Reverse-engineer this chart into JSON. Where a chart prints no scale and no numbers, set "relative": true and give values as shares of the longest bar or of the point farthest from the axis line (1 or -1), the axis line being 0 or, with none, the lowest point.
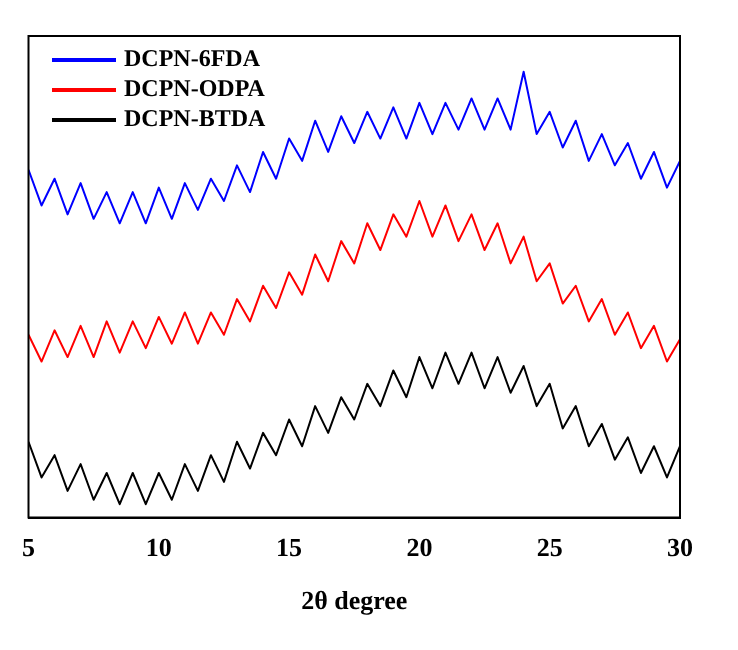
{
  "chart_data": {
    "type": "line",
    "xlabel": "2θ degree",
    "relative": true,
    "xlim": [
      5,
      30
    ],
    "xticks": [
      5,
      10,
      15,
      20,
      25,
      30
    ],
    "grid": false,
    "legend": "top left",
    "marker": "none",
    "line_style": "solid",
    "x": [
      5,
      5.5,
      6,
      6.5,
      7,
      7.5,
      8,
      8.5,
      9,
      9.5,
      10,
      10.5,
      11,
      11.5,
      12,
      12.5,
      13,
      13.5,
      14,
      14.5,
      15,
      15.5,
      16,
      16.5,
      17,
      17.5,
      18,
      18.5,
      19,
      19.5,
      20,
      20.5,
      21,
      21.5,
      22,
      22.5,
      23,
      23.5,
      24,
      24.5,
      25,
      25.5,
      26,
      26.5,
      27,
      27.5,
      28,
      28.5,
      29,
      29.5,
      30
    ],
    "series": [
      {
        "name": "DCPN-6FDA",
        "color": "#0000ff",
        "values": [
          0.78,
          0.7,
          0.76,
          0.68,
          0.75,
          0.67,
          0.73,
          0.66,
          0.73,
          0.66,
          0.74,
          0.67,
          0.75,
          0.69,
          0.76,
          0.71,
          0.79,
          0.73,
          0.82,
          0.76,
          0.85,
          0.8,
          0.89,
          0.82,
          0.9,
          0.84,
          0.91,
          0.85,
          0.92,
          0.85,
          0.93,
          0.86,
          0.93,
          0.87,
          0.94,
          0.87,
          0.94,
          0.87,
          1.0,
          0.86,
          0.91,
          0.83,
          0.89,
          0.8,
          0.86,
          0.79,
          0.84,
          0.76,
          0.82,
          0.74,
          0.8
        ]
      },
      {
        "name": "DCPN-ODPA",
        "color": "#ff0000",
        "values": [
          0.41,
          0.35,
          0.42,
          0.36,
          0.43,
          0.36,
          0.44,
          0.37,
          0.44,
          0.38,
          0.45,
          0.39,
          0.46,
          0.39,
          0.46,
          0.41,
          0.49,
          0.44,
          0.52,
          0.47,
          0.55,
          0.5,
          0.59,
          0.53,
          0.62,
          0.57,
          0.66,
          0.6,
          0.68,
          0.63,
          0.71,
          0.63,
          0.7,
          0.62,
          0.68,
          0.6,
          0.66,
          0.57,
          0.63,
          0.53,
          0.57,
          0.48,
          0.52,
          0.44,
          0.49,
          0.41,
          0.46,
          0.38,
          0.43,
          0.35,
          0.4
        ]
      },
      {
        "name": "DCPN-BTDA",
        "color": "#000000",
        "values": [
          0.17,
          0.09,
          0.14,
          0.06,
          0.12,
          0.04,
          0.1,
          0.03,
          0.1,
          0.03,
          0.1,
          0.04,
          0.12,
          0.06,
          0.14,
          0.08,
          0.17,
          0.11,
          0.19,
          0.14,
          0.22,
          0.16,
          0.25,
          0.19,
          0.27,
          0.22,
          0.3,
          0.25,
          0.33,
          0.27,
          0.36,
          0.29,
          0.37,
          0.3,
          0.37,
          0.29,
          0.36,
          0.28,
          0.34,
          0.25,
          0.3,
          0.2,
          0.25,
          0.16,
          0.21,
          0.13,
          0.18,
          0.1,
          0.16,
          0.09,
          0.16
        ]
      }
    ]
  }
}
